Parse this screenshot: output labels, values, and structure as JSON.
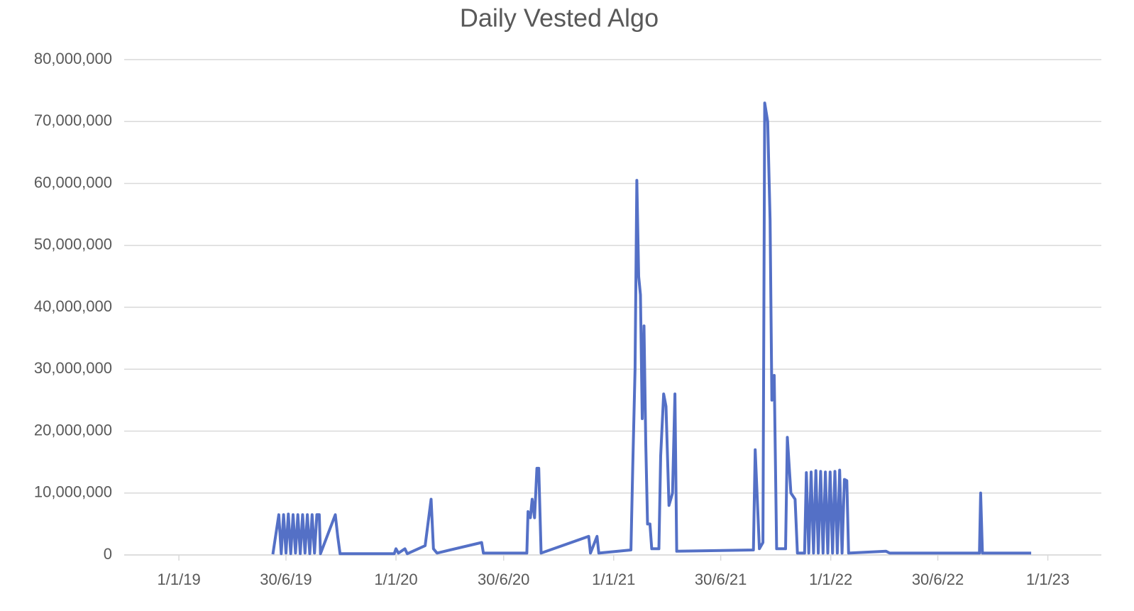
{
  "chart_data": {
    "type": "line",
    "title": "Daily Vested Algo",
    "x": [
      "2019-06-08",
      "2019-06-18",
      "2019-06-22",
      "2019-06-26",
      "2019-06-30",
      "2019-07-04",
      "2019-07-08",
      "2019-07-12",
      "2019-07-16",
      "2019-07-20",
      "2019-07-24",
      "2019-07-28",
      "2019-08-01",
      "2019-08-05",
      "2019-08-09",
      "2019-08-13",
      "2019-08-17",
      "2019-08-21",
      "2019-08-25",
      "2019-08-27",
      "2019-09-21",
      "2019-09-25",
      "2019-09-29",
      "2019-12-29",
      "2020-01-01",
      "2020-01-05",
      "2020-01-16",
      "2020-01-20",
      "2020-02-19",
      "2020-02-29",
      "2020-03-04",
      "2020-03-10",
      "2020-05-24",
      "2020-05-27",
      "2020-08-08",
      "2020-08-10",
      "2020-08-14",
      "2020-08-17",
      "2020-08-21",
      "2020-08-25",
      "2020-08-28",
      "2020-09-01",
      "2020-11-20",
      "2020-11-23",
      "2020-12-04",
      "2020-12-07",
      "2021-01-30",
      "2021-02-02",
      "2021-02-06",
      "2021-02-09",
      "2021-02-12",
      "2021-02-15",
      "2021-02-18",
      "2021-02-21",
      "2021-02-24",
      "2021-02-27",
      "2021-03-03",
      "2021-03-06",
      "2021-03-18",
      "2021-03-21",
      "2021-03-26",
      "2021-03-30",
      "2021-04-04",
      "2021-04-10",
      "2021-04-14",
      "2021-04-17",
      "2021-08-24",
      "2021-08-27",
      "2021-09-03",
      "2021-09-09",
      "2021-09-12",
      "2021-09-17",
      "2021-09-21",
      "2021-09-24",
      "2021-09-28",
      "2021-10-02",
      "2021-10-17",
      "2021-10-20",
      "2021-10-26",
      "2021-11-02",
      "2021-11-06",
      "2021-11-18",
      "2021-11-21",
      "2021-11-25",
      "2021-11-29",
      "2021-12-03",
      "2021-12-07",
      "2021-12-11",
      "2021-12-15",
      "2021-12-19",
      "2021-12-23",
      "2021-12-27",
      "2021-12-31",
      "2022-01-04",
      "2022-01-08",
      "2022-01-12",
      "2022-01-16",
      "2022-01-20",
      "2022-01-24",
      "2022-01-28",
      "2022-01-31",
      "2022-04-04",
      "2022-04-10",
      "2022-09-08",
      "2022-09-10",
      "2022-09-13",
      "2022-12-04"
    ],
    "series": [
      {
        "name": "Daily Vested Algo",
        "color": "#5470c6",
        "values": [
          100000,
          6500000,
          200000,
          6500000,
          300000,
          6600000,
          200000,
          6500000,
          300000,
          6500000,
          200000,
          6500000,
          300000,
          6500000,
          200000,
          6500000,
          300000,
          6500000,
          6500000,
          200000,
          6500000,
          3000000,
          200000,
          200000,
          1000000,
          300000,
          1000000,
          200000,
          1500000,
          9000000,
          1000000,
          300000,
          2000000,
          300000,
          300000,
          7000000,
          6000000,
          9000000,
          6000000,
          14000000,
          14000000,
          300000,
          3000000,
          300000,
          3000000,
          300000,
          800000,
          14000000,
          30000000,
          60500000,
          45000000,
          42000000,
          22000000,
          37000000,
          18000000,
          5000000,
          5000000,
          1000000,
          1000000,
          16000000,
          26000000,
          24000000,
          8000000,
          10000000,
          26000000,
          600000,
          800000,
          17000000,
          1000000,
          2000000,
          73000000,
          70000000,
          54000000,
          25000000,
          29000000,
          1000000,
          1000000,
          19000000,
          10000000,
          9000000,
          300000,
          300000,
          13300000,
          300000,
          13400000,
          300000,
          13600000,
          300000,
          13500000,
          300000,
          13400000,
          300000,
          13400000,
          300000,
          13500000,
          300000,
          13700000,
          300000,
          12200000,
          12000000,
          300000,
          600000,
          300000,
          300000,
          10000000,
          300000,
          300000
        ]
      }
    ],
    "xlim": [
      "2018-10-01",
      "2023-04-01"
    ],
    "xticks": [
      {
        "value": "2019-01-01",
        "label": "1/1/19"
      },
      {
        "value": "2019-06-30",
        "label": "30/6/19"
      },
      {
        "value": "2020-01-01",
        "label": "1/1/20"
      },
      {
        "value": "2020-06-30",
        "label": "30/6/20"
      },
      {
        "value": "2021-01-01",
        "label": "1/1/21"
      },
      {
        "value": "2021-06-30",
        "label": "30/6/21"
      },
      {
        "value": "2022-01-01",
        "label": "1/1/22"
      },
      {
        "value": "2022-06-30",
        "label": "30/6/22"
      },
      {
        "value": "2023-01-01",
        "label": "1/1/23"
      }
    ],
    "ylim": [
      0,
      80000000
    ],
    "yticks": [
      0,
      {
        "value": 10000000,
        "label": "10,000,000"
      },
      {
        "value": 20000000,
        "label": "20,000,000"
      },
      {
        "value": 30000000,
        "label": "30,000,000"
      },
      {
        "value": 40000000,
        "label": "40,000,000"
      },
      {
        "value": 50000000,
        "label": "50,000,000"
      },
      {
        "value": 60000000,
        "label": "60,000,000"
      },
      {
        "value": 70000000,
        "label": "70,000,000"
      },
      {
        "value": 80000000,
        "label": "80,000,000"
      }
    ],
    "grid": true
  }
}
